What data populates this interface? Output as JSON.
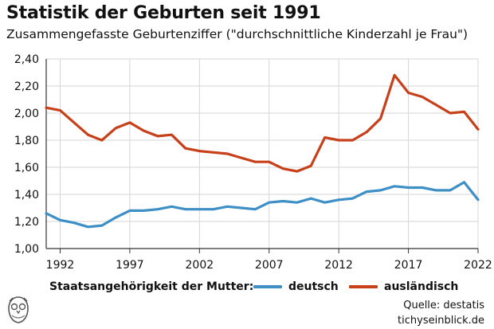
{
  "header": {
    "title": "Statistik der Geburten seit 1991",
    "subtitle": "Zusammengefasste Geburtenziffer (\"durchschnittliche Kinderzahl je Frau\")"
  },
  "legend": {
    "title": "Staatsangehörigkeit der Mutter:",
    "items": [
      "deutsch",
      "ausländisch"
    ]
  },
  "footer": {
    "source": "Quelle: destatis",
    "site": "tichyseinblick.de"
  },
  "colors": {
    "deutsch": "#3d8fc6",
    "auslaendisch": "#c7401a",
    "grid": "#d6d6d6"
  },
  "chart_data": {
    "type": "line",
    "xlim": [
      1991,
      2022
    ],
    "ylim": [
      1.0,
      2.4
    ],
    "xticks": [
      1992,
      1997,
      2002,
      2007,
      2012,
      2017,
      2022
    ],
    "xtick_labels": [
      "1992",
      "1997",
      "2002",
      "2007",
      "2012",
      "2017",
      "2022"
    ],
    "yticks": [
      1.0,
      1.2,
      1.4,
      1.6,
      1.8,
      2.0,
      2.2,
      2.4
    ],
    "ytick_labels": [
      "1,00",
      "1,20",
      "1,40",
      "1,60",
      "1,80",
      "2,00",
      "2,20",
      "2,40"
    ],
    "grid": true,
    "legend_position": "bottom",
    "x": [
      1991,
      1992,
      1993,
      1994,
      1995,
      1996,
      1997,
      1998,
      1999,
      2000,
      2001,
      2002,
      2003,
      2004,
      2005,
      2006,
      2007,
      2008,
      2009,
      2010,
      2011,
      2012,
      2013,
      2014,
      2015,
      2016,
      2017,
      2018,
      2019,
      2020,
      2021,
      2022
    ],
    "series": [
      {
        "name": "deutsch",
        "values": [
          1.26,
          1.21,
          1.19,
          1.16,
          1.17,
          1.23,
          1.28,
          1.28,
          1.29,
          1.31,
          1.29,
          1.29,
          1.29,
          1.31,
          1.3,
          1.29,
          1.34,
          1.35,
          1.34,
          1.37,
          1.34,
          1.36,
          1.37,
          1.42,
          1.43,
          1.46,
          1.45,
          1.45,
          1.43,
          1.43,
          1.49,
          1.36
        ]
      },
      {
        "name": "ausländisch",
        "values": [
          2.04,
          2.02,
          1.93,
          1.84,
          1.8,
          1.89,
          1.93,
          1.87,
          1.83,
          1.84,
          1.74,
          1.72,
          1.71,
          1.7,
          1.67,
          1.64,
          1.64,
          1.59,
          1.57,
          1.61,
          1.82,
          1.8,
          1.8,
          1.86,
          1.96,
          2.28,
          2.15,
          2.12,
          2.06,
          2.0,
          2.01,
          1.88
        ]
      }
    ]
  }
}
